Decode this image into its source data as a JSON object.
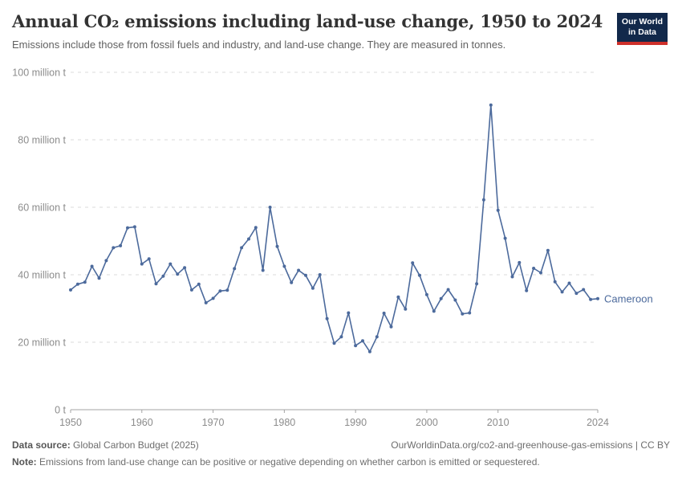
{
  "header": {
    "title": "Annual CO₂ emissions including land-use change, 1950 to 2024",
    "subtitle": "Emissions include those from fossil fuels and industry, and land-use change. They are measured in tonnes.",
    "logo_line1": "Our World",
    "logo_line2": "in Data"
  },
  "footer": {
    "data_source_label": "Data source:",
    "data_source_value": " Global Carbon Budget (2025)",
    "link": "OurWorldinData.org/co2-and-greenhouse-gas-emissions | CC BY",
    "note_label": "Note:",
    "note_text": " Emissions from land-use change can be positive or negative depending on whether carbon is emitted or sequestered."
  },
  "colors": {
    "line": "#4C6A9C",
    "logo_bg": "#12294B",
    "logo_bar": "#CE302B",
    "gridline": "#DBDBDB",
    "axis": "#A3A3A3",
    "tick_text": "#8C8C8C"
  },
  "chart_data": {
    "type": "line",
    "title": "Annual CO₂ emissions including land-use change, 1950 to 2024",
    "xlabel": "",
    "ylabel": "",
    "unit": "tonnes",
    "xlim": [
      1950,
      2024
    ],
    "ylim": [
      0,
      100
    ],
    "grid": "horizontal-dashed",
    "legend_position": "end-of-line-label",
    "x_ticks": [
      1950,
      1960,
      1970,
      1980,
      1990,
      2000,
      2010,
      2024
    ],
    "y_ticks": [
      {
        "value": 0,
        "label": "0 t"
      },
      {
        "value": 20,
        "label": "20 million t"
      },
      {
        "value": 40,
        "label": "40 million t"
      },
      {
        "value": 60,
        "label": "60 million t"
      },
      {
        "value": 80,
        "label": "80 million t"
      },
      {
        "value": 100,
        "label": "100 million t"
      }
    ],
    "series": [
      {
        "name": "Cameroon",
        "color": "#4C6A9C",
        "x": [
          1950,
          1951,
          1952,
          1953,
          1954,
          1955,
          1956,
          1957,
          1958,
          1959,
          1960,
          1961,
          1962,
          1963,
          1964,
          1965,
          1966,
          1967,
          1968,
          1969,
          1970,
          1971,
          1972,
          1973,
          1974,
          1975,
          1976,
          1977,
          1978,
          1979,
          1980,
          1981,
          1982,
          1983,
          1984,
          1985,
          1986,
          1987,
          1988,
          1989,
          1990,
          1991,
          1992,
          1993,
          1994,
          1995,
          1996,
          1997,
          1998,
          1999,
          2000,
          2001,
          2002,
          2003,
          2004,
          2005,
          2006,
          2007,
          2008,
          2009,
          2010,
          2011,
          2012,
          2013,
          2014,
          2015,
          2016,
          2017,
          2018,
          2019,
          2020,
          2021,
          2022,
          2023,
          2024
        ],
        "values": [
          35.5,
          37.2,
          37.8,
          42.5,
          39.0,
          44.2,
          48.0,
          48.6,
          53.9,
          54.2,
          43.2,
          44.7,
          37.3,
          39.6,
          43.2,
          40.2,
          42.1,
          35.5,
          37.2,
          31.7,
          33.0,
          35.2,
          35.4,
          41.8,
          48.0,
          50.6,
          54.0,
          41.3,
          60.0,
          48.4,
          42.5,
          37.7,
          41.3,
          39.8,
          36.0,
          40.0,
          27.0,
          19.7,
          21.6,
          28.7,
          19.0,
          20.4,
          17.2,
          21.6,
          28.6,
          24.6,
          33.4,
          29.8,
          43.5,
          39.8,
          34.1,
          29.2,
          32.9,
          35.6,
          32.5,
          28.4,
          28.7,
          37.3,
          62.2,
          90.3,
          59.1,
          50.8,
          39.4,
          43.6,
          35.3,
          41.9,
          40.6,
          47.2,
          37.9,
          34.9,
          37.5,
          34.5,
          35.6,
          32.7,
          32.9
        ]
      }
    ]
  }
}
